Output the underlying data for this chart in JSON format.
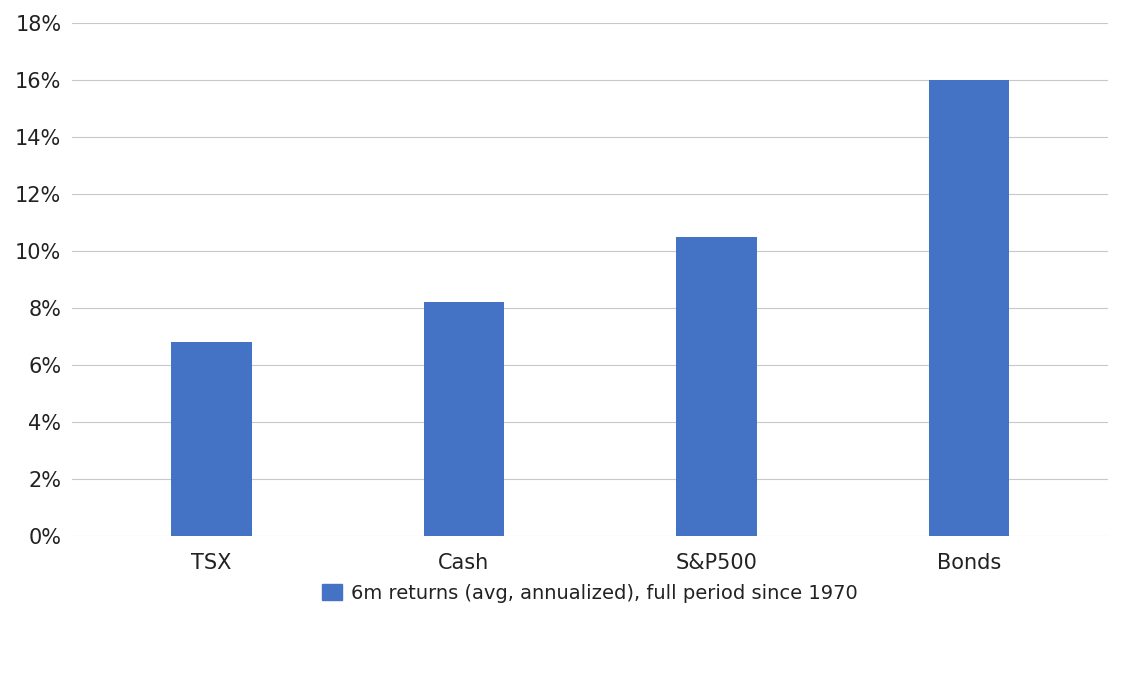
{
  "categories": [
    "TSX",
    "Cash",
    "S&P500",
    "Bonds"
  ],
  "values": [
    0.068,
    0.082,
    0.105,
    0.16
  ],
  "bar_color": "#4472C4",
  "background_color": "#ffffff",
  "ylim": [
    0,
    0.18
  ],
  "yticks": [
    0.0,
    0.02,
    0.04,
    0.06,
    0.08,
    0.1,
    0.12,
    0.14,
    0.16,
    0.18
  ],
  "ytick_labels": [
    "0%",
    "2%",
    "4%",
    "6%",
    "8%",
    "10%",
    "12%",
    "14%",
    "16%",
    "18%"
  ],
  "legend_label": "6m returns (avg, annualized), full period since 1970",
  "legend_color": "#4472C4",
  "tick_fontsize": 15,
  "legend_fontsize": 14,
  "bar_width": 0.32,
  "grid_color": "#c8c8c8",
  "grid_linestyle": "-",
  "grid_linewidth": 0.8
}
